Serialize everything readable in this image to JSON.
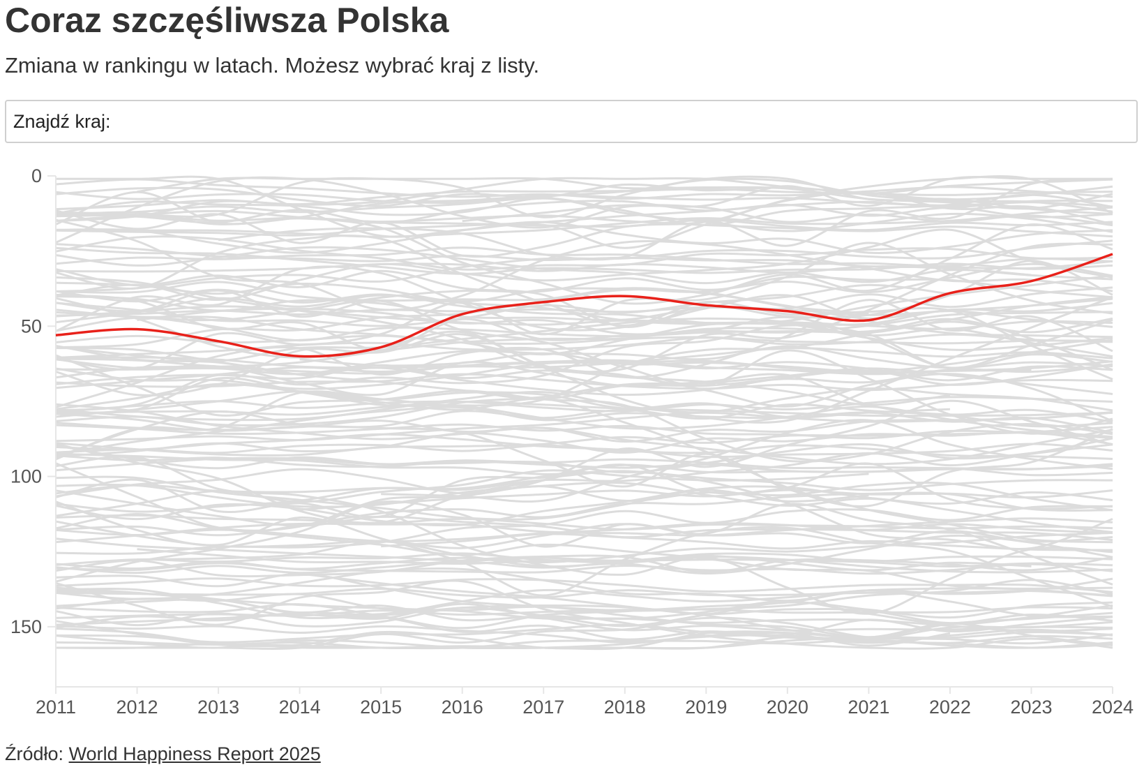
{
  "header": {
    "title": "Coraz szczęśliwsza Polska",
    "subtitle": "Zmiana w rankingu w latach. Możesz wybrać kraj z listy."
  },
  "search": {
    "label": "Znajdź kraj:",
    "value": "",
    "placeholder": ""
  },
  "footer": {
    "source_label": "Źródło:",
    "source_link": "World Happiness Report 2025"
  },
  "colors": {
    "highlight": "#e8211a",
    "background_lines": "#dcdcdc",
    "axis": "#e6e6e6",
    "text": "#333333"
  },
  "chart_data": {
    "type": "line",
    "x": [
      2011,
      2012,
      2013,
      2014,
      2015,
      2016,
      2017,
      2018,
      2019,
      2020,
      2021,
      2022,
      2023,
      2024
    ],
    "xlim": [
      2011,
      2024
    ],
    "ylim": [
      0,
      170
    ],
    "y_reversed": true,
    "yticks": [
      0,
      50,
      100,
      150
    ],
    "xticks": [
      2011,
      2012,
      2013,
      2014,
      2015,
      2016,
      2017,
      2018,
      2019,
      2020,
      2021,
      2022,
      2023,
      2024
    ],
    "grid": false,
    "highlight": {
      "values": [
        53,
        51,
        55,
        60,
        57,
        46,
        42,
        40,
        43,
        45,
        48,
        39,
        35,
        26
      ]
    },
    "background_series_count": 150
  }
}
